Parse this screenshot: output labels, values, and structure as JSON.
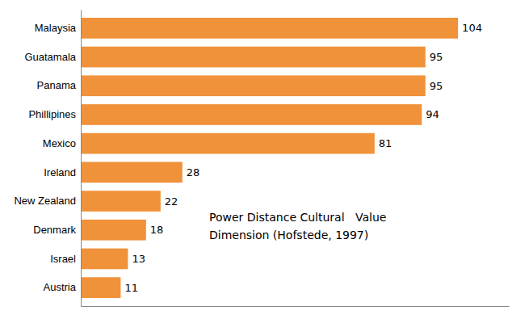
{
  "chart_data": {
    "type": "bar",
    "orientation": "horizontal",
    "categories": [
      "Austria",
      "Israel",
      "Denmark",
      "New Zealand",
      "Ireland",
      "Mexico",
      "Phillipines",
      "Panama",
      "Guatamala",
      "Malaysia"
    ],
    "values": [
      11,
      13,
      18,
      22,
      28,
      81,
      94,
      95,
      95,
      104
    ],
    "color": "#F0923A",
    "xlim": [
      0,
      118
    ],
    "data_labels": true,
    "tick_labels": "y",
    "grid": false,
    "annotation": "Power Distance Cultural   Value\nDimension (Hofstede, 1997)"
  }
}
